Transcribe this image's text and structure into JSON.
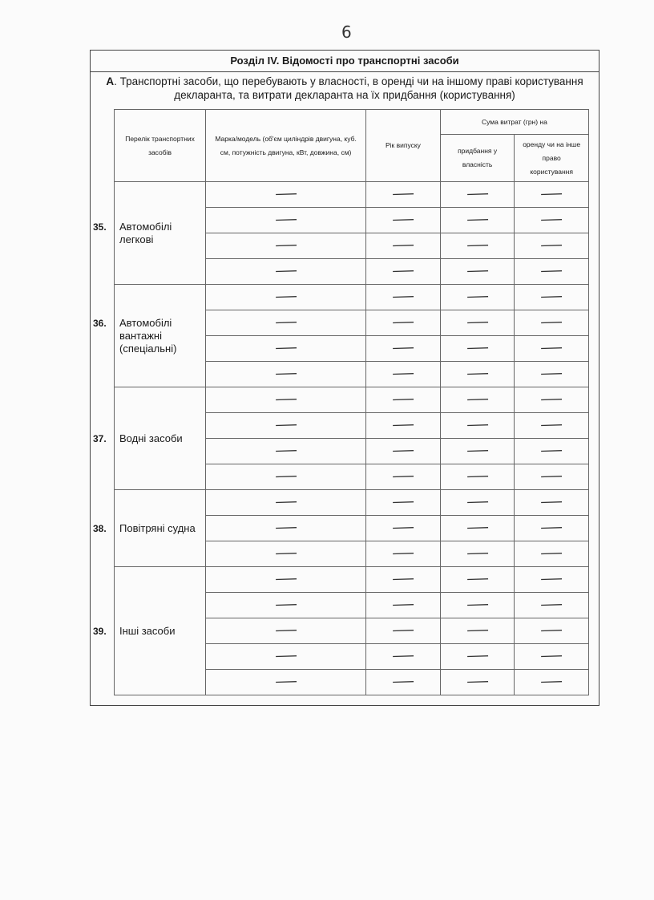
{
  "page_number": "6",
  "section_title": "Розділ IV. Відомості про транспортні засоби",
  "subsection": {
    "letter": "А",
    "title": ". Транспортні засоби, що перебувають у власності, в оренді чи на іншому праві користування декларанта, та витрати декларанта на їх придбання (користування)"
  },
  "headers": {
    "list": "Перелік транспортних засобів",
    "model": "Марка/модель (об'єм циліндрів двигуна, куб. см, потужність двигуна, кВт, довжина, см)",
    "year": "Рік випуску",
    "sum": "Сума витрат (грн) на",
    "purchase": "придбання у власність",
    "rent": "оренду чи на інше право користування"
  },
  "groups": [
    {
      "num": "35.",
      "label": "Автомобілі легкові",
      "rows": [
        [
          "—",
          "—",
          "—",
          "—"
        ],
        [
          "—",
          "—",
          "—",
          "—"
        ],
        [
          "—",
          "—",
          "—",
          "—"
        ],
        [
          "—",
          "—",
          "—",
          "—"
        ]
      ]
    },
    {
      "num": "36.",
      "label": "Автомобілі вантажні (спеціальні)",
      "rows": [
        [
          "—",
          "—",
          "—",
          "—"
        ],
        [
          "—",
          "—",
          "—",
          "—"
        ],
        [
          "—",
          "—",
          "—",
          "—"
        ],
        [
          "—",
          "—",
          "—",
          "—"
        ]
      ]
    },
    {
      "num": "37.",
      "label": "Водні засоби",
      "rows": [
        [
          "—",
          "—",
          "—",
          "—"
        ],
        [
          "—",
          "—",
          "—",
          "—"
        ],
        [
          "—",
          "—",
          "—",
          "—"
        ],
        [
          "—",
          "—",
          "—",
          "—"
        ]
      ]
    },
    {
      "num": "38.",
      "label": "Повітряні судна",
      "rows": [
        [
          "—",
          "—",
          "—",
          "—"
        ],
        [
          "—",
          "—",
          "—",
          "—"
        ],
        [
          "—",
          "—",
          "—",
          "—"
        ]
      ]
    },
    {
      "num": "39.",
      "label": "Інші засоби",
      "rows": [
        [
          "—",
          "—",
          "—",
          "—"
        ],
        [
          "—",
          "—",
          "—",
          "—"
        ],
        [
          "—",
          "—",
          "—",
          "—"
        ],
        [
          "—",
          "—",
          "—",
          "—"
        ],
        [
          "—",
          "—",
          "—",
          "—"
        ]
      ]
    }
  ]
}
